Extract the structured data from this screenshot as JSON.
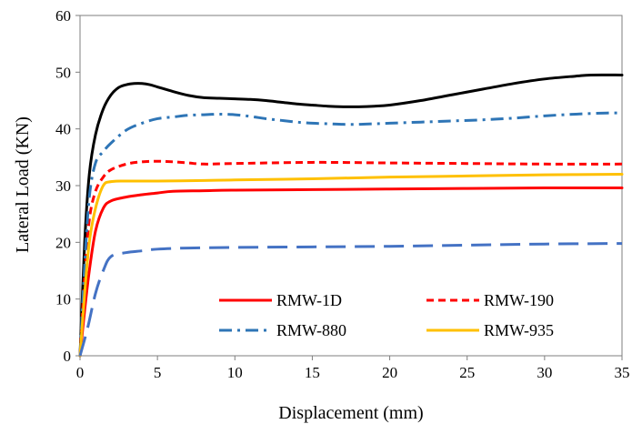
{
  "chart_data": {
    "type": "line",
    "title": "",
    "xlabel": "Displacement (mm)",
    "ylabel": "Lateral Load (KN)",
    "xlim": [
      0,
      35
    ],
    "ylim": [
      0,
      60
    ],
    "xticks": [
      "0",
      "5",
      "10",
      "15",
      "20",
      "25",
      "30",
      "35"
    ],
    "yticks": [
      "0",
      "10",
      "20",
      "30",
      "40",
      "50",
      "60"
    ],
    "grid": false,
    "legend_position": "bottom-right inside",
    "series": [
      {
        "name": "",
        "color": "#000000",
        "dash": "solid",
        "in_legend": false,
        "points": [
          [
            0,
            0
          ],
          [
            0.3,
            20
          ],
          [
            0.6,
            32
          ],
          [
            1,
            39
          ],
          [
            1.5,
            43.5
          ],
          [
            2,
            46
          ],
          [
            2.5,
            47.3
          ],
          [
            3,
            47.8
          ],
          [
            3.5,
            48
          ],
          [
            4,
            48
          ],
          [
            4.5,
            47.8
          ],
          [
            5,
            47.4
          ],
          [
            6,
            46.6
          ],
          [
            7,
            45.9
          ],
          [
            8,
            45.5
          ],
          [
            9,
            45.4
          ],
          [
            10,
            45.3
          ],
          [
            11,
            45.2
          ],
          [
            12,
            45
          ],
          [
            13,
            44.7
          ],
          [
            14,
            44.4
          ],
          [
            15,
            44.2
          ],
          [
            16,
            44
          ],
          [
            17,
            43.9
          ],
          [
            18,
            43.9
          ],
          [
            19,
            44
          ],
          [
            20,
            44.2
          ],
          [
            22,
            45
          ],
          [
            24,
            46
          ],
          [
            26,
            47
          ],
          [
            28,
            48
          ],
          [
            30,
            48.8
          ],
          [
            32,
            49.3
          ],
          [
            33,
            49.5
          ],
          [
            35,
            49.5
          ]
        ]
      },
      {
        "name": "RMW-1D",
        "color": "#ff0000",
        "dash": "solid",
        "in_legend": true,
        "points": [
          [
            0,
            0
          ],
          [
            0.3,
            8
          ],
          [
            0.6,
            15
          ],
          [
            1,
            22
          ],
          [
            1.5,
            26
          ],
          [
            2,
            27.3
          ],
          [
            3,
            28
          ],
          [
            4,
            28.4
          ],
          [
            5,
            28.7
          ],
          [
            6,
            29
          ],
          [
            8,
            29.1
          ],
          [
            10,
            29.2
          ],
          [
            15,
            29.3
          ],
          [
            20,
            29.4
          ],
          [
            25,
            29.5
          ],
          [
            30,
            29.6
          ],
          [
            35,
            29.6
          ]
        ]
      },
      {
        "name": "RMW-190",
        "color": "#ff0000",
        "dash": "dash",
        "in_legend": true,
        "points": [
          [
            0,
            0
          ],
          [
            0.3,
            14
          ],
          [
            0.6,
            24
          ],
          [
            1,
            29
          ],
          [
            1.5,
            31.5
          ],
          [
            2,
            32.8
          ],
          [
            3,
            33.8
          ],
          [
            4,
            34.2
          ],
          [
            5,
            34.3
          ],
          [
            6,
            34.2
          ],
          [
            7,
            34
          ],
          [
            8,
            33.8
          ],
          [
            10,
            33.9
          ],
          [
            15,
            34.1
          ],
          [
            20,
            34
          ],
          [
            25,
            33.9
          ],
          [
            30,
            33.8
          ],
          [
            35,
            33.8
          ]
        ]
      },
      {
        "name": "RMW-880",
        "color": "#2e75b6",
        "dash": "dashdot",
        "in_legend": true,
        "points": [
          [
            0,
            0
          ],
          [
            0.3,
            16
          ],
          [
            0.6,
            28
          ],
          [
            1,
            34
          ],
          [
            1.5,
            36
          ],
          [
            2,
            37.5
          ],
          [
            3,
            39.8
          ],
          [
            4,
            41
          ],
          [
            5,
            41.8
          ],
          [
            6,
            42.1
          ],
          [
            7,
            42.4
          ],
          [
            8,
            42.5
          ],
          [
            9,
            42.6
          ],
          [
            10,
            42.5
          ],
          [
            11,
            42.2
          ],
          [
            12,
            41.8
          ],
          [
            13,
            41.5
          ],
          [
            14,
            41.2
          ],
          [
            15,
            41
          ],
          [
            16,
            40.9
          ],
          [
            17,
            40.8
          ],
          [
            18,
            40.8
          ],
          [
            19,
            40.9
          ],
          [
            20,
            41
          ],
          [
            22,
            41.2
          ],
          [
            24,
            41.4
          ],
          [
            26,
            41.6
          ],
          [
            28,
            41.9
          ],
          [
            30,
            42.3
          ],
          [
            32,
            42.6
          ],
          [
            34,
            42.8
          ],
          [
            35,
            42.8
          ]
        ]
      },
      {
        "name": "RMW-935",
        "color": "#ffc000",
        "dash": "solid",
        "in_legend": true,
        "points": [
          [
            0,
            0
          ],
          [
            0.3,
            11
          ],
          [
            0.6,
            20
          ],
          [
            1,
            26
          ],
          [
            1.5,
            30
          ],
          [
            2,
            30.7
          ],
          [
            3,
            30.8
          ],
          [
            5,
            30.8
          ],
          [
            8,
            30.9
          ],
          [
            10,
            31
          ],
          [
            15,
            31.2
          ],
          [
            20,
            31.5
          ],
          [
            25,
            31.7
          ],
          [
            30,
            31.9
          ],
          [
            35,
            32
          ]
        ]
      },
      {
        "name": "",
        "color": "#4472c4",
        "dash": "longdash",
        "in_legend": false,
        "points": [
          [
            0,
            0
          ],
          [
            0.5,
            5
          ],
          [
            1,
            11
          ],
          [
            1.5,
            15
          ],
          [
            2,
            17.5
          ],
          [
            3,
            18.2
          ],
          [
            4,
            18.5
          ],
          [
            5,
            18.8
          ],
          [
            7,
            19
          ],
          [
            10,
            19.1
          ],
          [
            15,
            19.2
          ],
          [
            20,
            19.3
          ],
          [
            25,
            19.5
          ],
          [
            30,
            19.7
          ],
          [
            35,
            19.8
          ]
        ]
      }
    ]
  }
}
